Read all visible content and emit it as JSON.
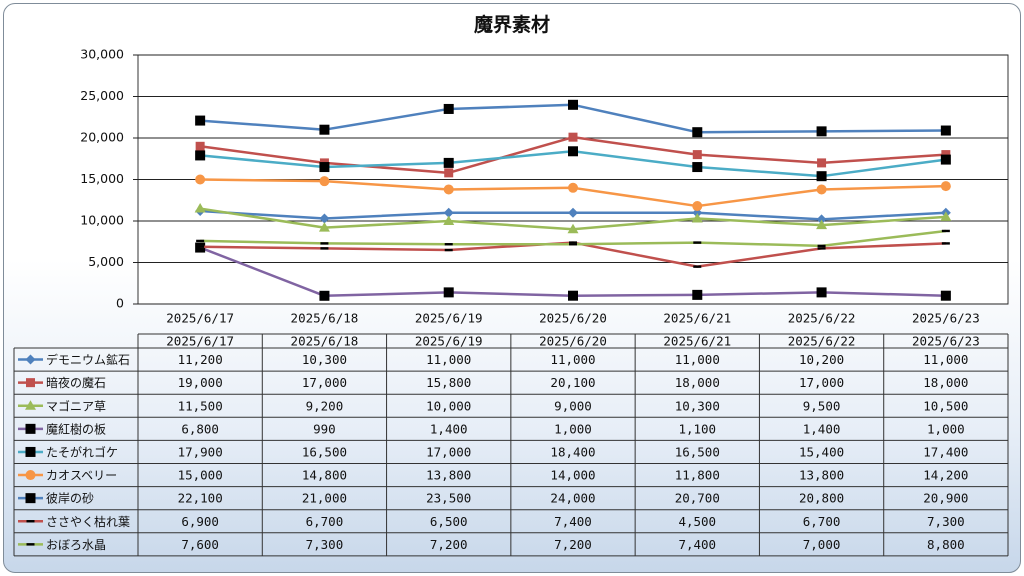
{
  "chart_data": {
    "type": "line",
    "title": "魔界素材",
    "xlabel": "",
    "ylabel": "",
    "ylim": [
      0,
      30000
    ],
    "yticks": [
      "0",
      "5,000",
      "10,000",
      "15,000",
      "20,000",
      "25,000",
      "30,000"
    ],
    "grid": "horizontal",
    "legend": "data-table",
    "categories": [
      "2025/6/17",
      "2025/6/18",
      "2025/6/19",
      "2025/6/20",
      "2025/6/21",
      "2025/6/22",
      "2025/6/23"
    ],
    "series": [
      {
        "name": "デモニウム鉱石",
        "color": "#4f81bd",
        "marker": "diamond",
        "values": [
          11200,
          10300,
          11000,
          11000,
          11000,
          10200,
          11000
        ],
        "labels": [
          "11,200",
          "10,300",
          "11,000",
          "11,000",
          "11,000",
          "10,200",
          "11,000"
        ]
      },
      {
        "name": "暗夜の魔石",
        "color": "#c0504d",
        "marker": "square",
        "values": [
          19000,
          17000,
          15800,
          20100,
          18000,
          17000,
          18000
        ],
        "labels": [
          "19,000",
          "17,000",
          "15,800",
          "20,100",
          "18,000",
          "17,000",
          "18,000"
        ]
      },
      {
        "name": "マゴニア草",
        "color": "#9bbb59",
        "marker": "triangle",
        "values": [
          11500,
          9200,
          10000,
          9000,
          10300,
          9500,
          10500
        ],
        "labels": [
          "11,500",
          "9,200",
          "10,000",
          "9,000",
          "10,300",
          "9,500",
          "10,500"
        ]
      },
      {
        "name": "魔紅樹の板",
        "color": "#8064a2",
        "marker": "bigsquare",
        "values": [
          6800,
          990,
          1400,
          1000,
          1100,
          1400,
          1000
        ],
        "labels": [
          "6,800",
          "990",
          "1,400",
          "1,000",
          "1,100",
          "1,400",
          "1,000"
        ]
      },
      {
        "name": "たそがれゴケ",
        "color": "#4bacc6",
        "marker": "bigsquare",
        "values": [
          17900,
          16500,
          17000,
          18400,
          16500,
          15400,
          17400
        ],
        "labels": [
          "17,900",
          "16,500",
          "17,000",
          "18,400",
          "16,500",
          "15,400",
          "17,400"
        ]
      },
      {
        "name": "カオスベリー",
        "color": "#f79646",
        "marker": "circle",
        "values": [
          15000,
          14800,
          13800,
          14000,
          11800,
          13800,
          14200
        ],
        "labels": [
          "15,000",
          "14,800",
          "13,800",
          "14,000",
          "11,800",
          "13,800",
          "14,200"
        ]
      },
      {
        "name": "彼岸の砂",
        "color": "#4f81bd",
        "marker": "bigsquare",
        "values": [
          22100,
          21000,
          23500,
          24000,
          20700,
          20800,
          20900
        ],
        "labels": [
          "22,100",
          "21,000",
          "23,500",
          "24,000",
          "20,700",
          "20,800",
          "20,900"
        ]
      },
      {
        "name": "ささやく枯れ葉",
        "color": "#c0504d",
        "marker": "dash",
        "values": [
          6900,
          6700,
          6500,
          7400,
          4500,
          6700,
          7300
        ],
        "labels": [
          "6,900",
          "6,700",
          "6,500",
          "7,400",
          "4,500",
          "6,700",
          "7,300"
        ]
      },
      {
        "name": "おぼろ水晶",
        "color": "#9bbb59",
        "marker": "dash",
        "values": [
          7600,
          7300,
          7200,
          7200,
          7400,
          7000,
          8800
        ],
        "labels": [
          "7,600",
          "7,300",
          "7,200",
          "7,200",
          "7,400",
          "7,000",
          "8,800"
        ]
      }
    ]
  }
}
